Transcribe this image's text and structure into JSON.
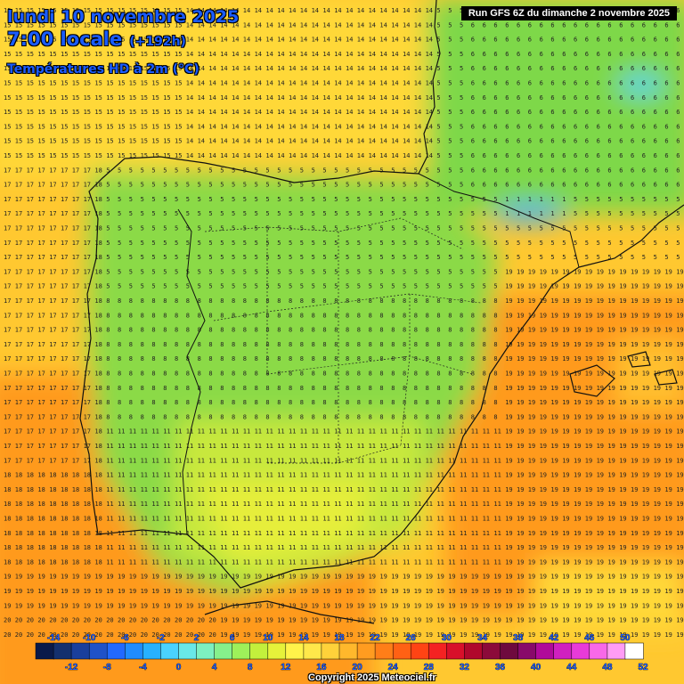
{
  "header": {
    "date_title": "lundi 10 novembre 2025",
    "time_title": "7:00 locale",
    "offset": "(+192h)",
    "subtitle": "Températures HD à 2m (°C)",
    "run_info": "Run GFS 6Z du dimanche 2 novembre 2025"
  },
  "footer": {
    "copyright": "Copyright 2025 Meteociel.fr"
  },
  "colorbar": {
    "top_labels": [
      "-14",
      "-10",
      "-6",
      "-2",
      "2",
      "6",
      "10",
      "14",
      "18",
      "22",
      "26",
      "30",
      "34",
      "38",
      "42",
      "46",
      "50"
    ],
    "bottom_labels": [
      "-12",
      "-8",
      "-4",
      "0",
      "4",
      "8",
      "12",
      "16",
      "20",
      "24",
      "28",
      "32",
      "36",
      "40",
      "44",
      "48",
      "52"
    ],
    "colors": [
      "#0a1a4a",
      "#14306e",
      "#1a3f9c",
      "#1f52c8",
      "#2169ff",
      "#1f8cff",
      "#27b1ff",
      "#4ad2ff",
      "#69e8e8",
      "#7df0c0",
      "#86f08c",
      "#9ef05a",
      "#c3f03c",
      "#e6f23a",
      "#fff34a",
      "#ffe84a",
      "#ffd23a",
      "#ffb82c",
      "#ff9c20",
      "#ff7e18",
      "#ff6114",
      "#ff4414",
      "#f42222",
      "#d8102a",
      "#b0082c",
      "#8c0a3a",
      "#6e0a3e",
      "#880a6a",
      "#b00a9a",
      "#d020c0",
      "#e83ad8",
      "#f868e8",
      "#ff9cf4",
      "#ffffff"
    ]
  },
  "map_colors": {
    "sea_warm": "#ff9a1e",
    "sea_mild": "#ffbf2e",
    "sea_cool": "#ffd838",
    "land_cold": "#7ed848",
    "land_cool": "#a4e23c",
    "land_mild": "#d2ea3a",
    "snow": "#36a8ff",
    "border": "#111111"
  },
  "grid_values": {
    "north_atlantic": "15",
    "bay_biscay": "14",
    "west_sea": "17",
    "south_sea": "18",
    "med_sea": "19",
    "alboran": "20",
    "north_plateau": "5",
    "central_plateau": "8",
    "south_land": "11",
    "france_sw": "6",
    "pyrenees": "1"
  }
}
